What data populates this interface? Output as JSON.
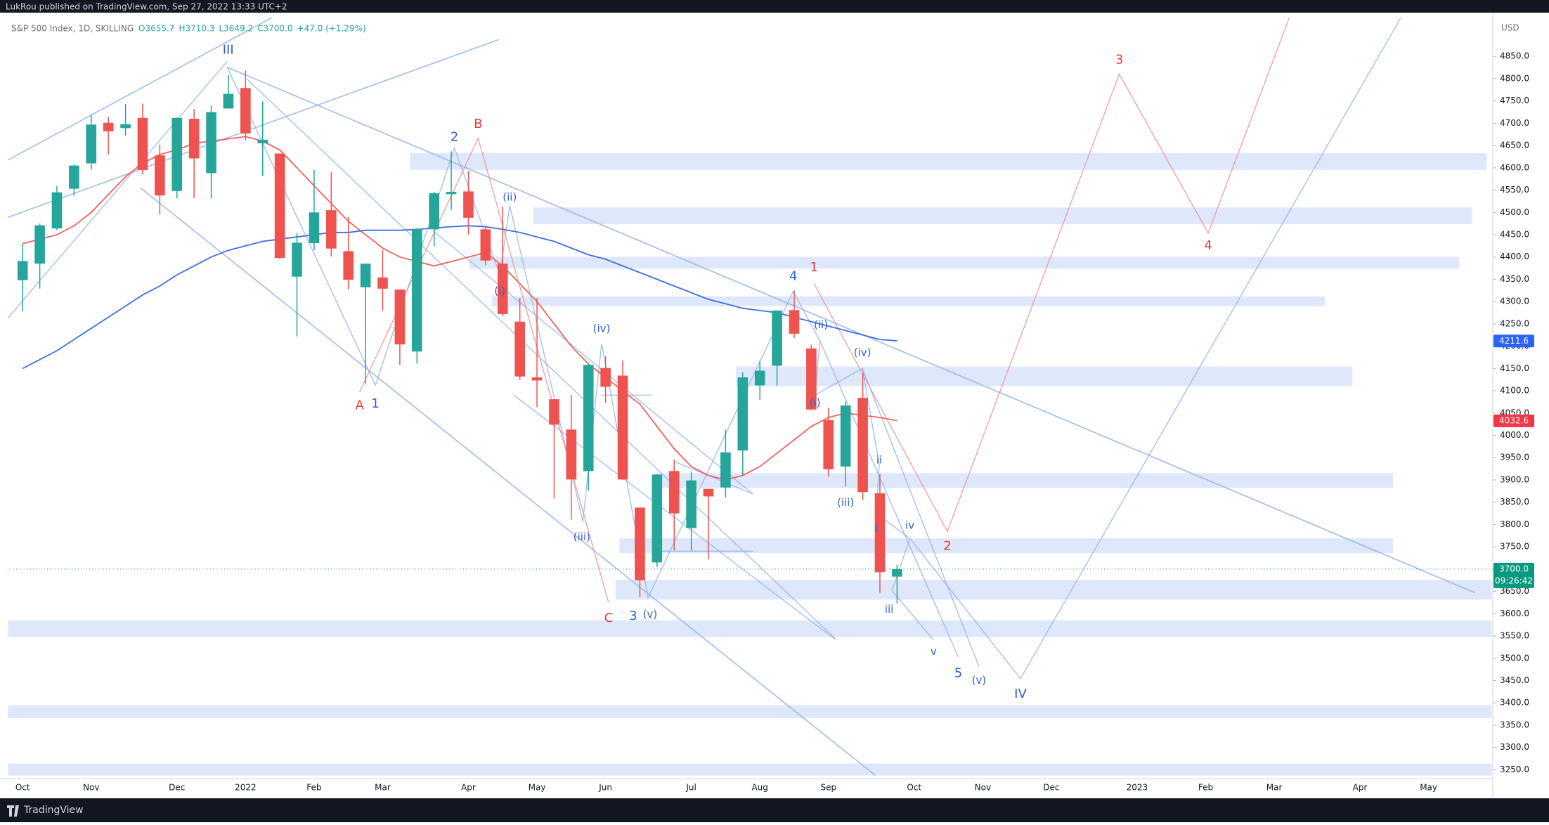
{
  "chart_data": {
    "type": "candlestick",
    "header": "LukRou published on TradingView.com, Sep 27, 2022 13:33 UTC+2",
    "symbol": "S&P 500 Index, 1D, SKILLING",
    "ohlc": [
      "O3655.7",
      "H3710.3",
      "L3649.2",
      "C3700.0",
      "+47.0 (+1.29%)"
    ],
    "currency": "USD",
    "brand": "TradingView",
    "up_color": "#26a69a",
    "down_color": "#ef5350",
    "categories": [
      "Oct",
      null,
      null,
      null,
      "Nov",
      null,
      null,
      null,
      null,
      "Dec",
      null,
      null,
      null,
      "2022",
      null,
      null,
      null,
      "Feb",
      null,
      null,
      null,
      "Mar",
      null,
      null,
      null,
      null,
      "Apr",
      null,
      null,
      null,
      "May",
      null,
      null,
      null,
      "Jun",
      null,
      null,
      null,
      null,
      "Jul",
      null,
      null,
      null,
      "Aug",
      null,
      null,
      null,
      "Sep",
      null,
      null,
      null,
      null,
      "Oct",
      null,
      null,
      null,
      "Nov",
      null,
      null,
      null,
      "Dec",
      null,
      null,
      null,
      null,
      "2023",
      null,
      null,
      null,
      "Feb",
      null,
      null,
      null,
      "Mar",
      null,
      null,
      null,
      null,
      "Apr",
      null,
      null,
      null,
      "May",
      null,
      null,
      null
    ],
    "open": [
      4348,
      4385,
      4464,
      4553,
      4610,
      4701,
      4689,
      4712,
      4628,
      4548,
      4710,
      4588,
      4733,
      4779,
      4655,
      4632,
      4356,
      4431,
      4505,
      4413,
      4332,
      4354,
      4327,
      4188,
      4462,
      4541,
      4547,
      4462,
      4385,
      4255,
      4130,
      4081,
      4013,
      3920,
      4151,
      4134,
      3838,
      3715,
      3920,
      3792,
      3880,
      3883,
      3966,
      4112,
      4156,
      4281,
      4195,
      4034,
      3930,
      4084,
      3870,
      3683,
      null,
      null,
      null,
      null,
      null,
      null,
      null,
      null,
      null,
      null,
      null,
      null,
      null,
      null,
      null,
      null,
      null,
      null,
      null,
      null,
      null,
      null,
      null,
      null,
      null,
      null,
      null,
      null,
      null,
      null,
      null,
      null,
      null,
      null
    ],
    "high": [
      4429,
      4475,
      4559,
      4608,
      4718,
      4714,
      4743,
      4744,
      4652,
      4713,
      4732,
      4740,
      4808,
      4818,
      4749,
      4632,
      4453,
      4595,
      4590,
      4490,
      4385,
      4416,
      4327,
      4465,
      4546,
      4637,
      4593,
      4471,
      4513,
      4308,
      4308,
      4081,
      4091,
      4160,
      4178,
      4168,
      3838,
      3913,
      3946,
      3919,
      3880,
      4013,
      4141,
      4167,
      4280,
      4325,
      4203,
      4062,
      4076,
      4140,
      3913,
      3710,
      null,
      null,
      null,
      null,
      null,
      null,
      null,
      null,
      null,
      null,
      null,
      null,
      null,
      null,
      null,
      null,
      null,
      null,
      null,
      null,
      null,
      null,
      null,
      null,
      null,
      null,
      null,
      null,
      null,
      null,
      null,
      null,
      null,
      null
    ],
    "low": [
      4278,
      4329,
      4460,
      4537,
      4596,
      4630,
      4672,
      4585,
      4495,
      4532,
      4532,
      4531,
      4733,
      4662,
      4582,
      4395,
      4222,
      4415,
      4401,
      4327,
      4115,
      4279,
      4158,
      4161,
      4424,
      4506,
      4450,
      4381,
      4267,
      4124,
      4063,
      3859,
      3811,
      3876,
      4073,
      3900,
      3637,
      3705,
      3742,
      3742,
      3722,
      3861,
      3911,
      4080,
      4112,
      4218,
      4057,
      3907,
      3886,
      3855,
      3647,
      3623,
      null,
      null,
      null,
      null,
      null,
      null,
      null,
      null,
      null,
      null,
      null,
      null,
      null,
      null,
      null,
      null,
      null,
      null,
      null,
      null,
      null,
      null,
      null,
      null,
      null,
      null,
      null,
      null,
      null,
      null,
      null,
      null,
      null,
      null
    ],
    "close": [
      4391,
      4471,
      4545,
      4605,
      4697,
      4682,
      4698,
      4595,
      4538,
      4712,
      4621,
      4725,
      4766,
      4677,
      4663,
      4398,
      4432,
      4500,
      4419,
      4349,
      4385,
      4329,
      4204,
      4463,
      4543,
      4546,
      4488,
      4392,
      4272,
      4132,
      4123,
      4024,
      3901,
      4158,
      4109,
      3901,
      3675,
      3912,
      3825,
      3899,
      3863,
      3962,
      4130,
      4145,
      4280,
      4228,
      4058,
      3924,
      4067,
      3873,
      3693,
      3700,
      null,
      null,
      null,
      null,
      null,
      null,
      null,
      null,
      null,
      null,
      null,
      null,
      null,
      null,
      null,
      null,
      null,
      null,
      null,
      null,
      null,
      null,
      null,
      null,
      null,
      null,
      null,
      null,
      null,
      null,
      null,
      null,
      null,
      null
    ],
    "series": [
      {
        "color": "#f0625e",
        "values": [
          4430,
          4440,
          4450,
          4470,
          4500,
          4540,
          4580,
          4610,
          4630,
          4640,
          4655,
          4660,
          4665,
          4670,
          4660,
          4640,
          4600,
          4560,
          4520,
          4480,
          4450,
          4420,
          4400,
          4390,
          4380,
          4390,
          4400,
          4410,
          4380,
          4340,
          4300,
          4250,
          4200,
          4160,
          4130,
          4100,
          4070,
          4020,
          3970,
          3930,
          3910,
          3900,
          3910,
          3930,
          3960,
          3990,
          4020,
          4040,
          4050,
          4045,
          4040,
          4033,
          null,
          null,
          null,
          null,
          null,
          null,
          null,
          null,
          null,
          null,
          null,
          null,
          null,
          null,
          null,
          null,
          null,
          null,
          null,
          null,
          null,
          null,
          null,
          null,
          null,
          null,
          null,
          null,
          null,
          null,
          null,
          null,
          null,
          null
        ]
      },
      {
        "color": "#3d6fe0",
        "values": [
          4150,
          4170,
          4190,
          4215,
          4240,
          4265,
          4290,
          4315,
          4335,
          4360,
          4380,
          4400,
          4415,
          4425,
          4435,
          4440,
          4445,
          4450,
          4455,
          4455,
          4460,
          4460,
          4460,
          4462,
          4465,
          4468,
          4470,
          4468,
          4462,
          4455,
          4445,
          4435,
          4420,
          4405,
          4395,
          4380,
          4365,
          4350,
          4335,
          4320,
          4305,
          4295,
          4285,
          4280,
          4275,
          4265,
          4255,
          4245,
          4235,
          4225,
          4215,
          4212,
          null,
          null,
          null,
          null,
          null,
          null,
          null,
          null,
          null,
          null,
          null,
          null,
          null,
          null,
          null,
          null,
          null,
          null,
          null,
          null,
          null,
          null,
          null,
          null,
          null,
          null,
          null,
          null,
          null,
          null,
          null,
          null,
          null,
          null
        ]
      }
    ],
    "price_labels": [
      {
        "price": 4211.6,
        "color": "#2962ff"
      },
      {
        "price": 4032.6,
        "color": "#f23645"
      },
      {
        "price": {
          "value": 3700,
          "label": "3700.0"
        },
        "countdown": "09:26:42",
        "color": "#089981"
      }
    ],
    "ylim": [
      3238,
      4937
    ],
    "yticks": [
      {
        "value": 3250,
        "label": "3250.0"
      },
      {
        "value": 3300,
        "label": "3300.0"
      },
      {
        "value": 3350,
        "label": "3350.0"
      },
      {
        "value": 3400,
        "label": "3400.0"
      },
      {
        "value": 3450,
        "label": "3450.0"
      },
      {
        "value": 3500,
        "label": "3500.0"
      },
      {
        "value": 3550,
        "label": "3550.0"
      },
      {
        "value": 3600,
        "label": "3600.0"
      },
      {
        "value": 3650,
        "label": "3650.0"
      },
      {
        "value": 3700,
        "label": "3700.0"
      },
      {
        "value": 3750,
        "label": "3750.0"
      },
      {
        "value": 3800,
        "label": "3800.0"
      },
      {
        "value": 3850,
        "label": "3850.0"
      },
      {
        "value": 3900,
        "label": "3900.0"
      },
      {
        "value": 3950,
        "label": "3950.0"
      },
      {
        "value": 4000,
        "label": "4000.0"
      },
      {
        "value": 4050,
        "label": "4050.0"
      },
      {
        "value": 4100,
        "label": "4100.0"
      },
      {
        "value": 4150,
        "label": "4150.0"
      },
      {
        "value": 4200,
        "label": "4200.0"
      },
      {
        "value": 4250,
        "label": "4250.0"
      },
      {
        "value": 4300,
        "label": "4300.0"
      },
      {
        "value": 4350,
        "label": "4350.0"
      },
      {
        "value": 4400,
        "label": "4400.0"
      },
      {
        "value": 4450,
        "label": "4450.0"
      },
      {
        "value": 4500,
        "label": "4500.0"
      },
      {
        "value": 4550,
        "label": "4550.0"
      },
      {
        "value": 4600,
        "label": "4600.0"
      },
      {
        "value": 4650,
        "label": "4650.0"
      },
      {
        "value": 4700,
        "label": "4700.0"
      },
      {
        "value": 4750,
        "label": "4750.0"
      },
      {
        "value": 4800,
        "label": "4800.0"
      },
      {
        "value": 4850,
        "label": "4850.0"
      }
    ],
    "grid": false,
    "annotations": [
      {
        "text": "III",
        "color": "#2f5fd0"
      },
      {
        "text": "2",
        "color": "#2f5fd0"
      },
      {
        "text": "B",
        "color": "#e53935"
      },
      {
        "text": "(ii)",
        "color": "#2f5fd0"
      },
      {
        "text": "(i)",
        "color": "#2f5fd0"
      },
      {
        "text": "A",
        "color": "#e53935"
      },
      {
        "text": "1",
        "color": "#2f5fd0"
      },
      {
        "text": "(iv)",
        "color": "#2f5fd0"
      },
      {
        "text": "(iii)",
        "color": "#2f5fd0"
      },
      {
        "text": "C",
        "color": "#e53935"
      },
      {
        "text": "3",
        "color": "#2f5fd0"
      },
      {
        "text": "(v)",
        "color": "#2f5fd0"
      },
      {
        "text": "4",
        "color": "#2f5fd0"
      },
      {
        "text": "1",
        "color": "#e53935"
      },
      {
        "text": "(ii)",
        "color": "#2f5fd0"
      },
      {
        "text": "(iv)",
        "color": "#2f5fd0"
      },
      {
        "text": "(i)",
        "color": "#2f5fd0"
      },
      {
        "text": "(iii)",
        "color": "#2f5fd0"
      },
      {
        "text": "ii",
        "color": "#2f5fd0"
      },
      {
        "text": "i",
        "color": "#2f5fd0"
      },
      {
        "text": "iv",
        "color": "#2f5fd0"
      },
      {
        "text": "iii",
        "color": "#2f5fd0"
      },
      {
        "text": "2",
        "color": "#e53935"
      },
      {
        "text": "v",
        "color": "#2f5fd0"
      },
      {
        "text": "5",
        "color": "#2f5fd0"
      },
      {
        "text": "(v)",
        "color": "#2f5fd0"
      },
      {
        "text": "IV",
        "color": "#2f5fd0"
      },
      {
        "text": "3",
        "color": "#e53935"
      },
      {
        "text": "4",
        "color": "#e53935"
      }
    ]
  }
}
